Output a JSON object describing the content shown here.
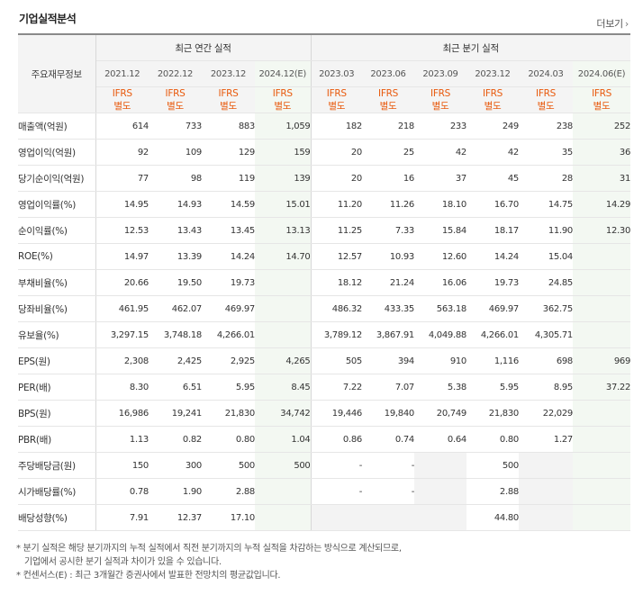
{
  "title": "기업실적분석",
  "more_label": "더보기",
  "annual_header": "최근 연간 실적",
  "quarter_header": "최근 분기 실적",
  "corner_label": "주요재무정보",
  "annual_dates": [
    "2021.12",
    "2022.12",
    "2023.12",
    "2024.12(E)"
  ],
  "quarter_dates": [
    "2023.03",
    "2023.06",
    "2023.09",
    "2023.12",
    "2024.03",
    "2024.06(E)"
  ],
  "ifrs_line1": "IFRS",
  "ifrs_line2": "별도",
  "rows": [
    {
      "label": "매출액(억원)",
      "values": [
        "614",
        "733",
        "883",
        "1,059",
        "182",
        "218",
        "233",
        "249",
        "238",
        "252"
      ]
    },
    {
      "label": "영업이익(억원)",
      "values": [
        "92",
        "109",
        "129",
        "159",
        "20",
        "25",
        "42",
        "42",
        "35",
        "36"
      ]
    },
    {
      "label": "당기순이익(억원)",
      "values": [
        "77",
        "98",
        "119",
        "139",
        "20",
        "16",
        "37",
        "45",
        "28",
        "31"
      ]
    },
    {
      "label": "영업이익률(%)",
      "values": [
        "14.95",
        "14.93",
        "14.59",
        "15.01",
        "11.20",
        "11.26",
        "18.10",
        "16.70",
        "14.75",
        "14.29"
      ]
    },
    {
      "label": "순이익률(%)",
      "values": [
        "12.53",
        "13.43",
        "13.45",
        "13.13",
        "11.25",
        "7.33",
        "15.84",
        "18.17",
        "11.90",
        "12.30"
      ]
    },
    {
      "label": "ROE(%)",
      "values": [
        "14.97",
        "13.39",
        "14.24",
        "14.70",
        "12.57",
        "10.93",
        "12.60",
        "14.24",
        "15.04",
        ""
      ]
    },
    {
      "label": "부채비율(%)",
      "values": [
        "20.66",
        "19.50",
        "19.73",
        "",
        "18.12",
        "21.24",
        "16.06",
        "19.73",
        "24.85",
        ""
      ]
    },
    {
      "label": "당좌비율(%)",
      "values": [
        "461.95",
        "462.07",
        "469.97",
        "",
        "486.32",
        "433.35",
        "563.18",
        "469.97",
        "362.75",
        ""
      ]
    },
    {
      "label": "유보율(%)",
      "values": [
        "3,297.15",
        "3,748.18",
        "4,266.01",
        "",
        "3,789.12",
        "3,867.91",
        "4,049.88",
        "4,266.01",
        "4,305.71",
        ""
      ]
    },
    {
      "label": "EPS(원)",
      "values": [
        "2,308",
        "2,425",
        "2,925",
        "4,265",
        "505",
        "394",
        "910",
        "1,116",
        "698",
        "969"
      ]
    },
    {
      "label": "PER(배)",
      "values": [
        "8.30",
        "6.51",
        "5.95",
        "8.45",
        "7.22",
        "7.07",
        "5.38",
        "5.95",
        "8.95",
        "37.22"
      ]
    },
    {
      "label": "BPS(원)",
      "values": [
        "16,986",
        "19,241",
        "21,830",
        "34,742",
        "19,446",
        "19,840",
        "20,749",
        "21,830",
        "22,029",
        ""
      ]
    },
    {
      "label": "PBR(배)",
      "values": [
        "1.13",
        "0.82",
        "0.80",
        "1.04",
        "0.86",
        "0.74",
        "0.64",
        "0.80",
        "1.27",
        ""
      ]
    },
    {
      "label": "주당배당금(원)",
      "values": [
        "150",
        "300",
        "500",
        "500",
        "-",
        "-",
        "",
        "500",
        "",
        ""
      ]
    },
    {
      "label": "시가배당률(%)",
      "values": [
        "0.78",
        "1.90",
        "2.88",
        "",
        "-",
        "-",
        "",
        "2.88",
        "",
        ""
      ]
    },
    {
      "label": "배당성향(%)",
      "values": [
        "7.91",
        "12.37",
        "17.10",
        "",
        "",
        "",
        "",
        "44.80",
        "",
        ""
      ]
    }
  ],
  "notes": [
    "* 분기 실적은 해당 분기까지의 누적 실적에서 직전 분기까지의 누적 실적을 차감하는 방식으로 계산되므로,",
    "기업에서 공시한 분기 실적과 차이가 있을 수 있습니다.",
    "* 컨센서스(E) : 최근 3개월간 증권사에서 발표한 전망치의 평균값입니다."
  ],
  "colors": {
    "ifrs": "#e8590c",
    "estimate_bg": "#f3f8f2",
    "empty_bg": "#f3f3f3",
    "header_bg": "#f4f4f4"
  }
}
